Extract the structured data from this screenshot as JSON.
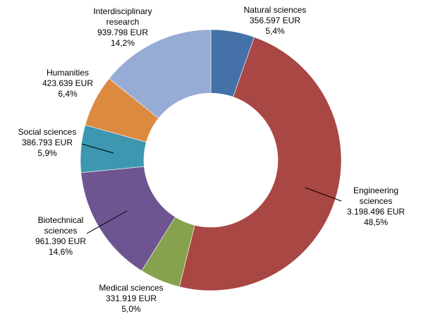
{
  "chart_data": {
    "type": "pie",
    "donut": true,
    "slices": [
      {
        "name": "Natural sciences",
        "lines": [
          "Natural sciences"
        ],
        "amount": "356.597 EUR",
        "percent_label": "5,4%",
        "value": 356597,
        "percent": 5.4,
        "color": "#4472A8"
      },
      {
        "name": "Engineering sciences",
        "lines": [
          "Engineering",
          "sciences"
        ],
        "amount": "3.198.496 EUR",
        "percent_label": "48,5%",
        "value": 3198496,
        "percent": 48.5,
        "color": "#A94744"
      },
      {
        "name": "Medical sciences",
        "lines": [
          "Medical sciences"
        ],
        "amount": "331.919 EUR",
        "percent_label": "5,0%",
        "value": 331919,
        "percent": 5.0,
        "color": "#87A24E"
      },
      {
        "name": "Biotechnical sciences",
        "lines": [
          "Biotechnical",
          "sciences"
        ],
        "amount": "961.390 EUR",
        "percent_label": "14,6%",
        "value": 961390,
        "percent": 14.6,
        "color": "#6E5592"
      },
      {
        "name": "Social sciences",
        "lines": [
          "Social sciences"
        ],
        "amount": "386.793 EUR",
        "percent_label": "5,9%",
        "value": 386793,
        "percent": 5.9,
        "color": "#3E97B0"
      },
      {
        "name": "Humanities",
        "lines": [
          "Humanities"
        ],
        "amount": "423.639 EUR",
        "percent_label": "6,4%",
        "value": 423639,
        "percent": 6.4,
        "color": "#DD8A41"
      },
      {
        "name": "Interdisciplinary research",
        "lines": [
          "Interdisciplinary",
          "research"
        ],
        "amount": "939.798 EUR",
        "percent_label": "14,2%",
        "value": 939798,
        "percent": 14.2,
        "color": "#97ACD5"
      }
    ]
  }
}
